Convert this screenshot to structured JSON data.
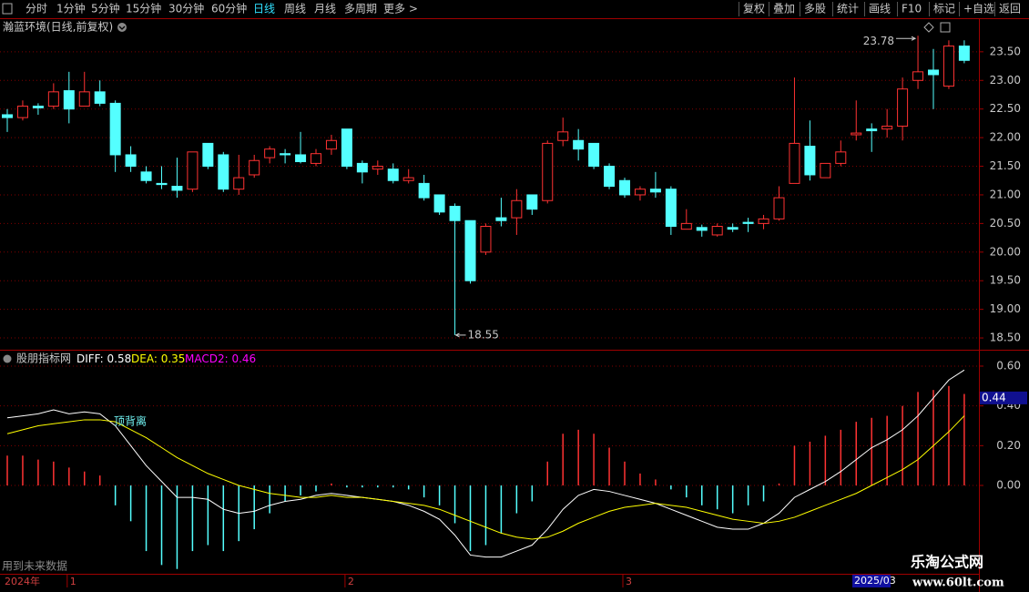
{
  "toolbar": {
    "left": [
      "分时",
      "1分钟",
      "5分钟",
      "15分钟",
      "30分钟",
      "60分钟",
      "日线",
      "周线",
      "月线",
      "多周期",
      "更多 >"
    ],
    "right": [
      "复权",
      "叠加",
      "多股",
      "统计",
      "画线",
      "F10",
      "标记",
      "+自选",
      "返回"
    ]
  },
  "chart_data": [
    {
      "type": "candlestick",
      "title": "瀚蓝环境(日线,前复权)",
      "categories": [
        "2024年",
        null,
        null,
        null,
        "1",
        null,
        null,
        null,
        null,
        null,
        null,
        null,
        null,
        null,
        null,
        null,
        null,
        null,
        null,
        null,
        null,
        null,
        "2",
        null,
        null,
        null,
        null,
        null,
        null,
        null,
        null,
        null,
        null,
        null,
        null,
        null,
        null,
        null,
        null,
        null,
        "3",
        null,
        null,
        null,
        null,
        null,
        null,
        null,
        null,
        null,
        null,
        null,
        null,
        null,
        null,
        null,
        null,
        null,
        null,
        null,
        null,
        null,
        null
      ],
      "open": [
        22.4,
        22.35,
        22.55,
        22.55,
        22.82,
        22.55,
        22.8,
        22.6,
        21.7,
        21.4,
        21.2,
        21.15,
        21.1,
        21.9,
        21.7,
        21.1,
        21.35,
        21.65,
        21.72,
        21.7,
        21.55,
        21.8,
        22.15,
        21.55,
        21.45,
        21.45,
        21.25,
        21.2,
        21.0,
        20.8,
        20.55,
        20.0,
        20.6,
        20.6,
        21.0,
        20.9,
        21.95,
        21.95,
        21.9,
        21.5,
        21.25,
        21.0,
        21.1,
        21.1,
        20.4,
        20.43,
        20.3,
        20.43,
        20.52,
        20.5,
        20.58,
        21.2,
        21.85,
        21.3,
        21.55,
        22.05,
        22.15,
        22.15,
        22.2,
        23.0,
        23.18,
        22.9,
        23.6
      ],
      "close": [
        22.35,
        22.55,
        22.52,
        22.8,
        22.5,
        22.8,
        22.6,
        21.7,
        21.5,
        21.25,
        21.18,
        21.08,
        21.75,
        21.5,
        21.1,
        21.3,
        21.6,
        21.8,
        21.7,
        21.58,
        21.72,
        21.95,
        21.5,
        21.4,
        21.5,
        21.25,
        21.3,
        20.95,
        20.7,
        20.55,
        19.5,
        20.45,
        20.55,
        20.9,
        20.75,
        21.9,
        22.1,
        21.8,
        21.5,
        21.15,
        21.0,
        21.1,
        21.05,
        20.45,
        20.5,
        20.38,
        20.45,
        20.4,
        20.5,
        20.58,
        20.95,
        21.9,
        21.35,
        21.55,
        21.75,
        22.08,
        22.12,
        22.2,
        22.85,
        23.15,
        23.1,
        23.6,
        23.35
      ],
      "high": [
        22.5,
        22.65,
        22.6,
        22.95,
        23.15,
        23.15,
        23.0,
        22.65,
        21.85,
        21.5,
        21.5,
        21.65,
        21.75,
        21.9,
        21.75,
        21.7,
        21.7,
        21.85,
        21.8,
        22.1,
        21.8,
        22.05,
        22.15,
        21.6,
        21.6,
        21.55,
        21.45,
        21.35,
        21.0,
        20.85,
        20.55,
        20.5,
        20.95,
        21.1,
        21.0,
        21.95,
        22.35,
        22.15,
        21.9,
        21.55,
        21.3,
        21.15,
        21.4,
        21.15,
        20.75,
        20.48,
        20.5,
        20.5,
        20.6,
        20.65,
        21.15,
        23.05,
        22.3,
        21.55,
        21.95,
        22.65,
        22.25,
        22.5,
        23.05,
        23.78,
        23.55,
        23.7,
        23.7
      ],
      "low": [
        22.1,
        22.3,
        22.4,
        22.5,
        22.25,
        22.55,
        22.55,
        21.4,
        21.4,
        21.2,
        21.1,
        20.95,
        21.05,
        21.45,
        21.05,
        21.0,
        21.3,
        21.55,
        21.55,
        21.55,
        21.5,
        21.7,
        21.45,
        21.2,
        21.35,
        21.2,
        21.2,
        20.9,
        20.65,
        18.55,
        19.45,
        19.95,
        20.45,
        20.3,
        20.65,
        20.85,
        21.85,
        21.6,
        21.45,
        21.1,
        20.95,
        20.9,
        20.95,
        20.3,
        20.4,
        20.27,
        20.27,
        20.35,
        20.35,
        20.4,
        20.55,
        21.2,
        21.25,
        21.3,
        21.5,
        21.95,
        21.75,
        22.0,
        21.95,
        22.85,
        22.5,
        22.85,
        23.3
      ],
      "up_color": "#ff3232",
      "down_color": "#54ffff",
      "ylim": [
        18.31,
        23.8
      ],
      "yticks": [
        {
          "value": 18.5,
          "label": "18.50"
        },
        {
          "value": 19,
          "label": "19.00"
        },
        {
          "value": 19.5,
          "label": "19.50"
        },
        {
          "value": 20,
          "label": "20.00"
        },
        {
          "value": 20.5,
          "label": "20.50"
        },
        {
          "value": 21,
          "label": "21.00"
        },
        {
          "value": 21.5,
          "label": "21.50"
        },
        {
          "value": 22,
          "label": "22.00"
        },
        {
          "value": 22.5,
          "label": "22.50"
        },
        {
          "value": 23,
          "label": "23.00"
        },
        {
          "value": 23.5,
          "label": "23.50"
        }
      ],
      "grid": true,
      "annotations": [
        {
          "value": 23.78
        },
        {
          "value": 18.55
        }
      ],
      "cursor_date": "2025/03"
    },
    {
      "type": "macd",
      "title": "股朋指标网",
      "series": [
        {
          "name": "DIFF",
          "color": "#ffffff",
          "current": 0.58,
          "values": [
            0.34,
            0.35,
            0.36,
            0.38,
            0.36,
            0.37,
            0.36,
            0.3,
            0.2,
            0.1,
            0.02,
            -0.06,
            -0.06,
            -0.07,
            -0.12,
            -0.14,
            -0.13,
            -0.1,
            -0.08,
            -0.07,
            -0.05,
            -0.04,
            -0.05,
            -0.06,
            -0.07,
            -0.08,
            -0.1,
            -0.13,
            -0.17,
            -0.25,
            -0.35,
            -0.36,
            -0.36,
            -0.33,
            -0.3,
            -0.22,
            -0.12,
            -0.05,
            -0.02,
            -0.03,
            -0.05,
            -0.07,
            -0.09,
            -0.12,
            -0.15,
            -0.18,
            -0.21,
            -0.22,
            -0.22,
            -0.19,
            -0.14,
            -0.06,
            -0.02,
            0.02,
            0.07,
            0.13,
            0.19,
            0.23,
            0.28,
            0.35,
            0.44,
            0.53,
            0.58
          ]
        },
        {
          "name": "DEA",
          "color": "#ffff00",
          "current": 0.35,
          "values": [
            0.26,
            0.28,
            0.3,
            0.31,
            0.32,
            0.33,
            0.33,
            0.32,
            0.28,
            0.24,
            0.19,
            0.14,
            0.1,
            0.06,
            0.03,
            0.0,
            -0.02,
            -0.04,
            -0.05,
            -0.06,
            -0.06,
            -0.05,
            -0.06,
            -0.06,
            -0.07,
            -0.08,
            -0.09,
            -0.1,
            -0.12,
            -0.15,
            -0.18,
            -0.21,
            -0.24,
            -0.26,
            -0.27,
            -0.26,
            -0.23,
            -0.19,
            -0.16,
            -0.13,
            -0.11,
            -0.1,
            -0.09,
            -0.1,
            -0.11,
            -0.13,
            -0.15,
            -0.17,
            -0.18,
            -0.19,
            -0.18,
            -0.16,
            -0.13,
            -0.1,
            -0.07,
            -0.04,
            0.0,
            0.04,
            0.08,
            0.13,
            0.2,
            0.27,
            0.35
          ]
        },
        {
          "name": "MACD2",
          "color": "#ff00ff",
          "current": 0.46,
          "up_color": "#ff3232",
          "down_color": "#54ffff",
          "values": [
            0.15,
            0.15,
            0.13,
            0.12,
            0.09,
            0.07,
            0.05,
            -0.1,
            -0.18,
            -0.33,
            -0.4,
            -0.42,
            -0.33,
            -0.3,
            -0.33,
            -0.28,
            -0.22,
            -0.14,
            -0.08,
            -0.05,
            -0.03,
            0.01,
            -0.01,
            -0.01,
            -0.01,
            -0.01,
            -0.02,
            -0.06,
            -0.1,
            -0.19,
            -0.33,
            -0.3,
            -0.24,
            -0.14,
            -0.08,
            0.12,
            0.26,
            0.28,
            0.26,
            0.19,
            0.12,
            0.06,
            0.03,
            -0.02,
            -0.06,
            -0.1,
            -0.12,
            -0.14,
            -0.1,
            -0.08,
            0.01,
            0.2,
            0.22,
            0.25,
            0.28,
            0.32,
            0.34,
            0.35,
            0.4,
            0.47,
            0.48,
            0.5,
            0.46
          ]
        }
      ],
      "ylim": [
        -0.435,
        0.664
      ],
      "yticks": [
        {
          "value": 0,
          "label": "0.00"
        },
        {
          "value": 0.2,
          "label": "0.20"
        },
        {
          "value": 0.4,
          "label": "0.40"
        },
        {
          "value": 0.6,
          "label": "0.60"
        }
      ],
      "grid": true,
      "annotations": [
        {
          "text": "顶背离"
        }
      ],
      "cursor_value": 0.44,
      "note": "用到未来数据"
    }
  ],
  "watermark": {
    "title": "乐淘公式网",
    "url": "www.60lt.com"
  }
}
